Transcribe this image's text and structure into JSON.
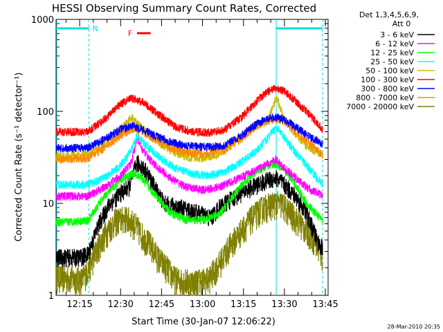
{
  "chart_data": {
    "type": "line",
    "title": "HESSI Observing Summary Count Rates, Corrected",
    "xlabel": "Start Time (30-Jan-07 12:06:22)",
    "ylabel": "Corrected Count Rate (s⁻¹ detector⁻¹)",
    "y_scale": "log",
    "ylim": [
      1,
      1000
    ],
    "xlim": [
      "12:06:22",
      "13:46:00"
    ],
    "y_ticks": [
      "1",
      "10",
      "100",
      "1000"
    ],
    "x_ticks": [
      "12:15",
      "12:30",
      "12:45",
      "13:00",
      "13:15",
      "13:30",
      "13:45"
    ],
    "x_tick_minutes": [
      15,
      30,
      45,
      60,
      75,
      90,
      105
    ],
    "legend": {
      "header_line1": "Det 1,3,4,5,6,9,",
      "header_line2": "Att 0",
      "position": "right"
    },
    "series": [
      {
        "name": "3 - 6 keV",
        "color": "#000000",
        "values": [
          [
            6.4,
            2.6
          ],
          [
            15,
            2.6
          ],
          [
            18,
            2.8
          ],
          [
            22,
            6
          ],
          [
            26,
            10
          ],
          [
            30,
            13
          ],
          [
            33,
            15
          ],
          [
            36,
            28
          ],
          [
            39,
            23
          ],
          [
            42,
            16
          ],
          [
            46,
            10
          ],
          [
            52,
            9
          ],
          [
            58,
            8
          ],
          [
            63,
            7
          ],
          [
            66,
            9
          ],
          [
            72,
            12
          ],
          [
            78,
            15
          ],
          [
            84,
            18
          ],
          [
            87,
            19
          ],
          [
            90,
            16
          ],
          [
            94,
            12
          ],
          [
            98,
            8
          ],
          [
            102,
            4
          ],
          [
            104,
            3.2
          ]
        ]
      },
      {
        "name": "6 - 12 keV",
        "color": "#ff00ff",
        "values": [
          [
            6.4,
            12
          ],
          [
            18,
            12
          ],
          [
            24,
            15
          ],
          [
            30,
            20
          ],
          [
            34,
            28
          ],
          [
            36,
            52
          ],
          [
            38,
            38
          ],
          [
            42,
            27
          ],
          [
            48,
            19
          ],
          [
            54,
            15
          ],
          [
            60,
            14
          ],
          [
            66,
            15
          ],
          [
            72,
            18
          ],
          [
            78,
            22
          ],
          [
            84,
            27
          ],
          [
            87,
            30
          ],
          [
            90,
            24
          ],
          [
            94,
            19
          ],
          [
            98,
            15
          ],
          [
            104,
            12
          ]
        ]
      },
      {
        "name": "12 - 25 keV",
        "color": "#00ff00",
        "values": [
          [
            6.4,
            6.2
          ],
          [
            18,
            6.5
          ],
          [
            24,
            12
          ],
          [
            30,
            18
          ],
          [
            34,
            21
          ],
          [
            37,
            20
          ],
          [
            42,
            13
          ],
          [
            48,
            8
          ],
          [
            54,
            6.6
          ],
          [
            60,
            6.6
          ],
          [
            66,
            7.5
          ],
          [
            72,
            13
          ],
          [
            78,
            21
          ],
          [
            84,
            26
          ],
          [
            87,
            27
          ],
          [
            90,
            23
          ],
          [
            94,
            16
          ],
          [
            98,
            10
          ],
          [
            104,
            6.5
          ]
        ]
      },
      {
        "name": "25 - 50 keV",
        "color": "#00ffff",
        "values": [
          [
            6.4,
            16
          ],
          [
            18,
            16
          ],
          [
            24,
            19
          ],
          [
            30,
            26
          ],
          [
            34,
            38
          ],
          [
            36,
            55
          ],
          [
            39,
            44
          ],
          [
            44,
            32
          ],
          [
            50,
            24
          ],
          [
            56,
            21
          ],
          [
            62,
            20
          ],
          [
            68,
            22
          ],
          [
            74,
            28
          ],
          [
            80,
            38
          ],
          [
            84,
            52
          ],
          [
            87,
            68
          ],
          [
            90,
            52
          ],
          [
            94,
            36
          ],
          [
            98,
            26
          ],
          [
            104,
            16
          ]
        ]
      },
      {
        "name": "50 - 100 keV",
        "color": "#ccbb00",
        "values": [
          [
            6.4,
            33
          ],
          [
            18,
            34
          ],
          [
            24,
            44
          ],
          [
            30,
            66
          ],
          [
            34,
            85
          ],
          [
            37,
            70
          ],
          [
            42,
            50
          ],
          [
            48,
            38
          ],
          [
            54,
            32
          ],
          [
            60,
            31
          ],
          [
            66,
            34
          ],
          [
            72,
            48
          ],
          [
            78,
            66
          ],
          [
            84,
            80
          ],
          [
            87,
            145
          ],
          [
            90,
            80
          ],
          [
            94,
            58
          ],
          [
            98,
            42
          ],
          [
            104,
            34
          ]
        ]
      },
      {
        "name": "100 - 300 keV",
        "color": "#ff0000",
        "values": [
          [
            6.4,
            60
          ],
          [
            18,
            60
          ],
          [
            24,
            82
          ],
          [
            30,
            120
          ],
          [
            34,
            140
          ],
          [
            38,
            126
          ],
          [
            44,
            92
          ],
          [
            50,
            68
          ],
          [
            56,
            60
          ],
          [
            62,
            59
          ],
          [
            68,
            63
          ],
          [
            74,
            85
          ],
          [
            80,
            132
          ],
          [
            84,
            165
          ],
          [
            87,
            178
          ],
          [
            90,
            166
          ],
          [
            94,
            130
          ],
          [
            98,
            100
          ],
          [
            104,
            64
          ]
        ]
      },
      {
        "name": "300 - 800 keV",
        "color": "#0000ff",
        "values": [
          [
            6.4,
            40
          ],
          [
            18,
            40
          ],
          [
            24,
            50
          ],
          [
            30,
            64
          ],
          [
            34,
            70
          ],
          [
            38,
            64
          ],
          [
            44,
            52
          ],
          [
            50,
            45
          ],
          [
            56,
            42
          ],
          [
            62,
            41
          ],
          [
            68,
            43
          ],
          [
            74,
            54
          ],
          [
            80,
            74
          ],
          [
            84,
            84
          ],
          [
            87,
            86
          ],
          [
            90,
            82
          ],
          [
            94,
            68
          ],
          [
            98,
            56
          ],
          [
            104,
            44
          ]
        ]
      },
      {
        "name": "800 - 7000 keV",
        "color": "#ff8800",
        "values": [
          [
            6.4,
            30
          ],
          [
            18,
            31
          ],
          [
            24,
            40
          ],
          [
            30,
            55
          ],
          [
            34,
            65
          ],
          [
            38,
            60
          ],
          [
            44,
            48
          ],
          [
            50,
            38
          ],
          [
            56,
            35
          ],
          [
            62,
            35
          ],
          [
            68,
            38
          ],
          [
            74,
            50
          ],
          [
            80,
            70
          ],
          [
            84,
            80
          ],
          [
            87,
            82
          ],
          [
            90,
            78
          ],
          [
            94,
            62
          ],
          [
            98,
            48
          ],
          [
            104,
            34
          ]
        ]
      },
      {
        "name": "7000 - 20000 keV",
        "color": "#808000",
        "values": [
          [
            6.4,
            1.6
          ],
          [
            16,
            1.5
          ],
          [
            19,
            2.2
          ],
          [
            22,
            3.5
          ],
          [
            25,
            5
          ],
          [
            28,
            6.5
          ],
          [
            32,
            7
          ],
          [
            35,
            6
          ],
          [
            38,
            4.5
          ],
          [
            41,
            3.5
          ],
          [
            44,
            2.5
          ],
          [
            47,
            2
          ],
          [
            50,
            1.5
          ],
          [
            56,
            1.4
          ],
          [
            62,
            1.5
          ],
          [
            66,
            2.2
          ],
          [
            70,
            3.5
          ],
          [
            74,
            5
          ],
          [
            78,
            7
          ],
          [
            82,
            9
          ],
          [
            86,
            10
          ],
          [
            89,
            10
          ],
          [
            92,
            8
          ],
          [
            96,
            6
          ],
          [
            100,
            4.5
          ],
          [
            104,
            2.6
          ]
        ]
      }
    ],
    "annotations": {
      "n_label": "N",
      "f_label": "F",
      "night_color": "#00e0e0",
      "flare_color": "#ff0000",
      "night_bars": [
        [
          6.4,
          18.4
        ],
        [
          87,
          104
        ]
      ],
      "saa_dashes": [
        18.4,
        104
      ],
      "saa_solid": [
        87
      ],
      "flare_bar": [
        36,
        41
      ],
      "timestamp": "28-Mar-2010 20:35"
    }
  }
}
